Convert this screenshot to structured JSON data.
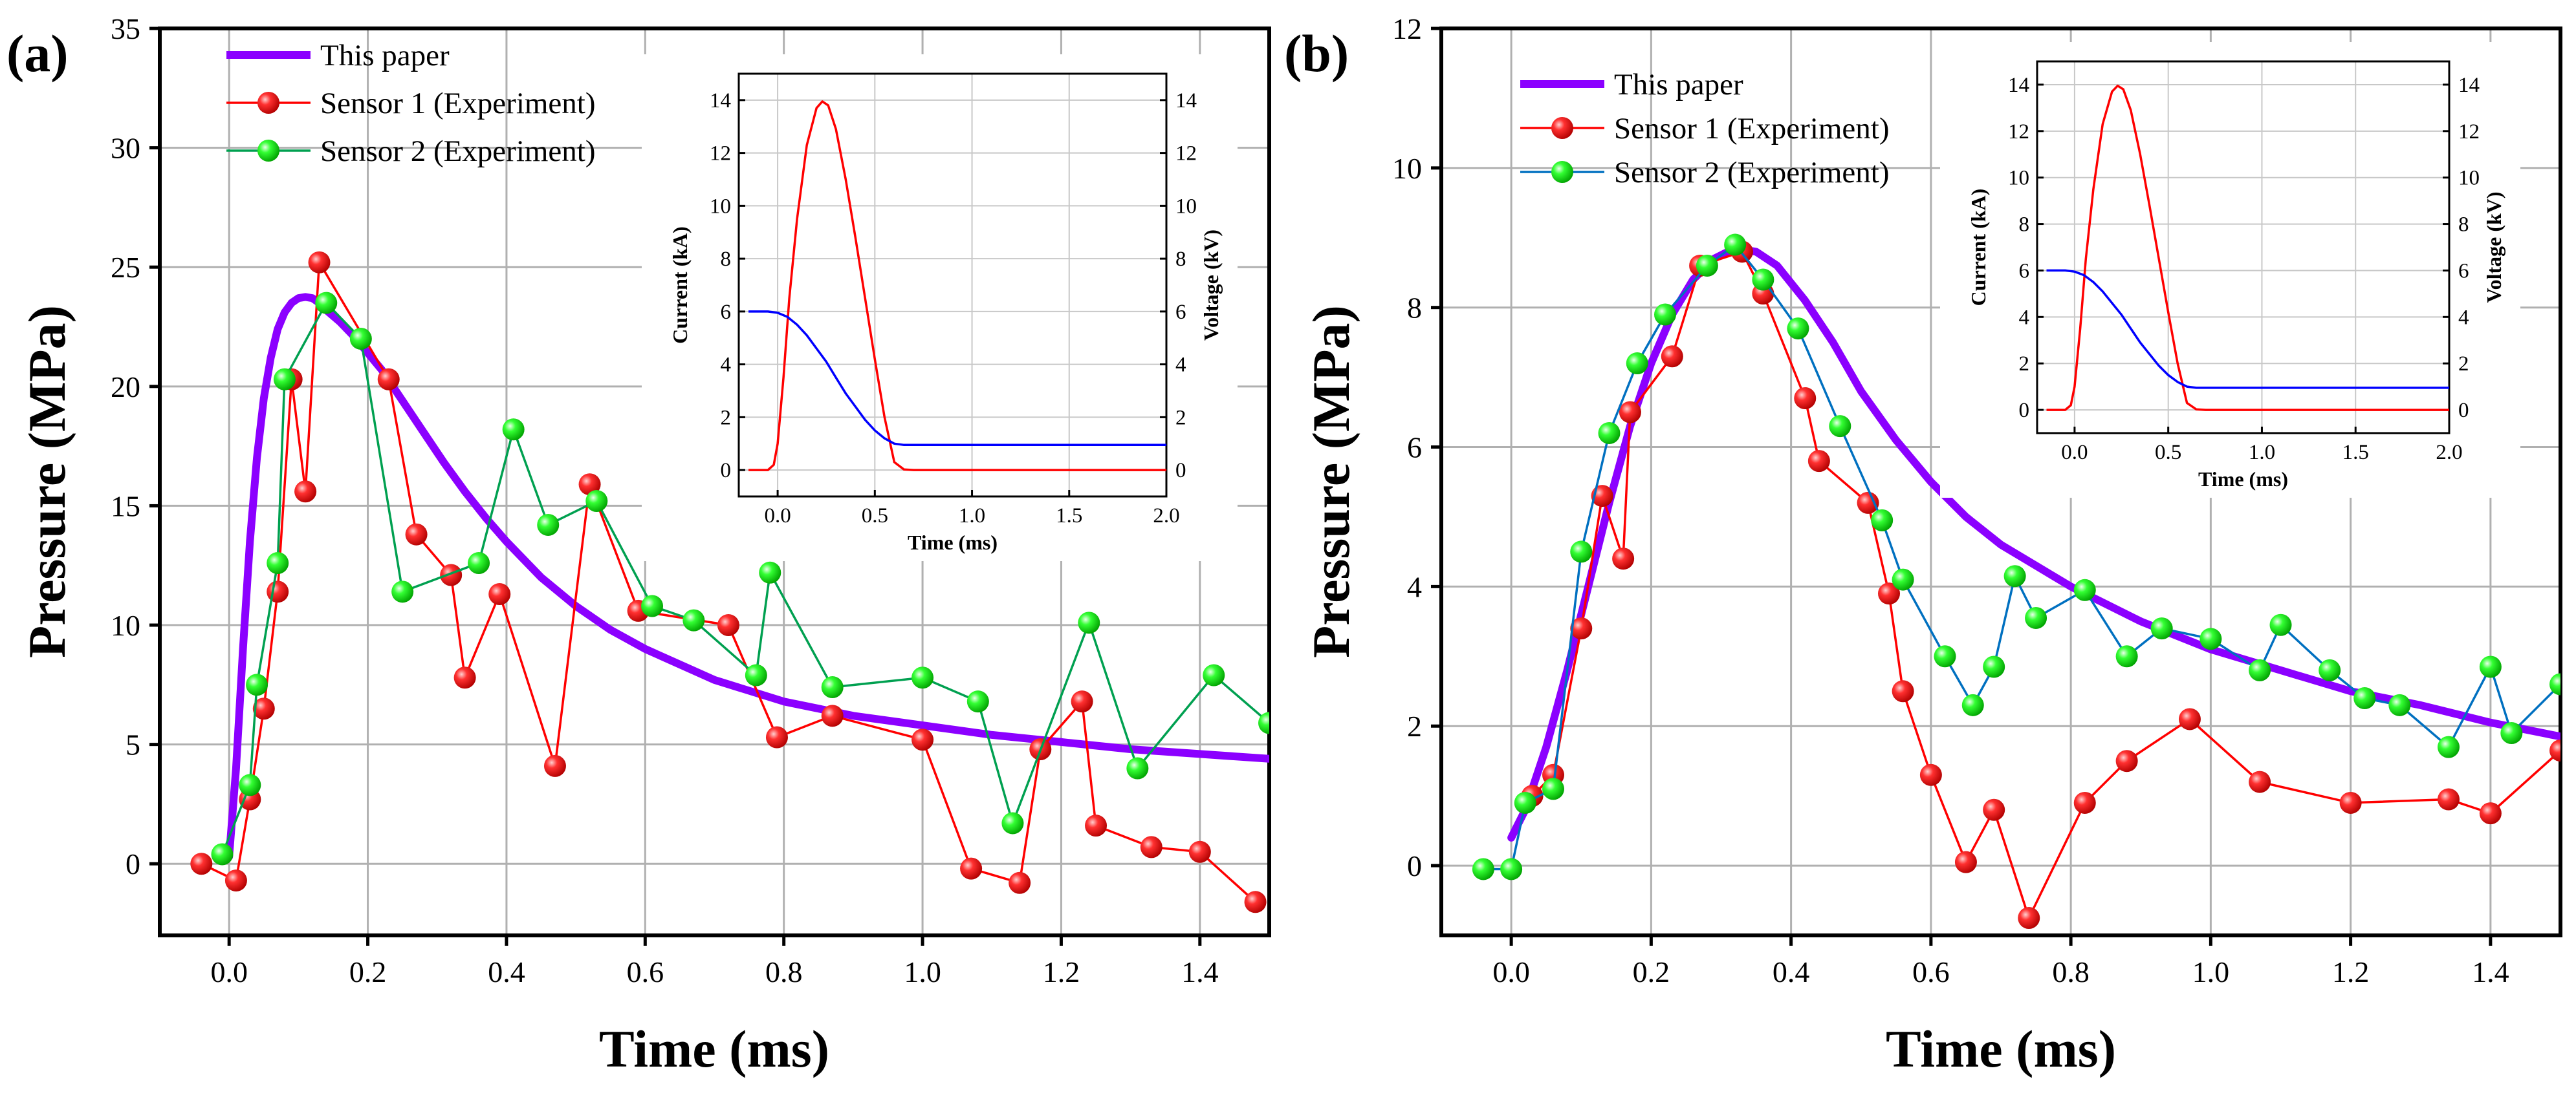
{
  "chart_data": [
    {
      "type": "line",
      "panel_label": "(a)",
      "xlabel": "Time (ms)",
      "ylabel": "Pressure (MPa)",
      "xlim": [
        -0.1,
        1.5
      ],
      "ylim": [
        -3,
        35
      ],
      "xticks": [
        "0.0",
        "0.2",
        "0.4",
        "0.6",
        "0.8",
        "1.0",
        "1.2",
        "1.4"
      ],
      "yticks": [
        "0",
        "5",
        "10",
        "15",
        "20",
        "25",
        "30",
        "35"
      ],
      "grid": true,
      "legend_position": "top-left",
      "series": [
        {
          "name": "This paper",
          "color": "#8b00ff",
          "marker": "none",
          "x": [
            0.0,
            0.01,
            0.02,
            0.03,
            0.04,
            0.05,
            0.06,
            0.07,
            0.08,
            0.09,
            0.1,
            0.11,
            0.12,
            0.13,
            0.14,
            0.16,
            0.18,
            0.2,
            0.22,
            0.25,
            0.28,
            0.31,
            0.34,
            0.37,
            0.4,
            0.45,
            0.5,
            0.55,
            0.6,
            0.7,
            0.8,
            0.9,
            1.0,
            1.1,
            1.2,
            1.3,
            1.4,
            1.5
          ],
          "y": [
            0.3,
            4,
            9,
            13.5,
            17,
            19.5,
            21.2,
            22.4,
            23.1,
            23.5,
            23.7,
            23.75,
            23.7,
            23.5,
            23.2,
            22.7,
            22.1,
            21.4,
            20.7,
            19.4,
            18.1,
            16.8,
            15.6,
            14.5,
            13.5,
            12.0,
            10.8,
            9.8,
            9.0,
            7.7,
            6.8,
            6.2,
            5.8,
            5.4,
            5.1,
            4.8,
            4.6,
            4.4
          ]
        },
        {
          "name": "Sensor 1 (Experiment)",
          "color": "#ff0000",
          "marker": "circle-red",
          "x": [
            -0.04,
            0.01,
            0.03,
            0.05,
            0.07,
            0.09,
            0.11,
            0.13,
            0.23,
            0.27,
            0.32,
            0.34,
            0.39,
            0.47,
            0.52,
            0.59,
            0.72,
            0.79,
            0.87,
            1.0,
            1.07,
            1.14,
            1.17,
            1.23,
            1.25,
            1.33,
            1.4,
            1.48
          ],
          "y": [
            0.0,
            -0.7,
            2.7,
            6.5,
            11.4,
            20.3,
            15.6,
            25.2,
            20.3,
            13.8,
            12.1,
            7.8,
            11.3,
            4.1,
            15.9,
            10.6,
            10.0,
            5.3,
            6.2,
            5.2,
            -0.2,
            -0.8,
            4.8,
            6.8,
            1.6,
            0.7,
            0.5,
            -1.6
          ]
        },
        {
          "name": "Sensor 2 (Experiment)",
          "color": "#00a050",
          "marker": "circle-green",
          "x": [
            -0.01,
            0.03,
            0.04,
            0.07,
            0.08,
            0.14,
            0.19,
            0.25,
            0.36,
            0.41,
            0.46,
            0.53,
            0.61,
            0.67,
            0.76,
            0.78,
            0.87,
            1.0,
            1.08,
            1.13,
            1.24,
            1.31,
            1.42,
            1.5
          ],
          "y": [
            0.4,
            3.3,
            7.5,
            12.6,
            20.3,
            23.5,
            22.0,
            11.4,
            12.6,
            18.2,
            14.2,
            15.2,
            10.8,
            10.2,
            7.9,
            12.2,
            7.4,
            7.8,
            6.8,
            1.7,
            10.1,
            4.0,
            7.9,
            5.9
          ]
        }
      ],
      "inset": {
        "xlabel": "Time (ms)",
        "ylabel_left": "Current (kA)",
        "ylabel_right": "Voltage (kV)",
        "xlim": [
          -0.2,
          2.0
        ],
        "ylim": [
          -1,
          15
        ],
        "xticks": [
          "0.0",
          "0.5",
          "1.0",
          "1.5",
          "2.0"
        ],
        "yticks_left": [
          "0",
          "2",
          "4",
          "6",
          "8",
          "10",
          "12",
          "14"
        ],
        "yticks_right": [
          "0",
          "2",
          "4",
          "6",
          "8",
          "10",
          "12",
          "14"
        ],
        "series": [
          {
            "name": "Current",
            "color": "#ff0000",
            "x": [
              -0.15,
              -0.05,
              -0.02,
              0.0,
              0.03,
              0.06,
              0.1,
              0.15,
              0.2,
              0.23,
              0.26,
              0.3,
              0.35,
              0.4,
              0.45,
              0.5,
              0.55,
              0.6,
              0.65,
              0.7,
              1.0,
              1.5,
              2.0
            ],
            "y": [
              0,
              0,
              0.2,
              1.0,
              3.5,
              6.5,
              9.5,
              12.3,
              13.7,
              13.95,
              13.8,
              12.9,
              11.0,
              8.8,
              6.5,
              4.2,
              2.0,
              0.3,
              0.02,
              0,
              0,
              0,
              0
            ]
          },
          {
            "name": "Voltage",
            "color": "#0000ff",
            "x": [
              -0.15,
              -0.05,
              0.0,
              0.05,
              0.1,
              0.15,
              0.2,
              0.25,
              0.3,
              0.35,
              0.4,
              0.45,
              0.5,
              0.55,
              0.6,
              0.65,
              0.7,
              1.0,
              1.5,
              2.0
            ],
            "y": [
              6,
              6,
              5.95,
              5.8,
              5.5,
              5.1,
              4.6,
              4.1,
              3.5,
              2.9,
              2.4,
              1.9,
              1.5,
              1.2,
              1.0,
              0.95,
              0.95,
              0.95,
              0.95,
              0.95
            ]
          }
        ]
      }
    },
    {
      "type": "line",
      "panel_label": "(b)",
      "xlabel": "Time (ms)",
      "ylabel": "Pressure (MPa)",
      "xlim": [
        -0.1,
        1.5
      ],
      "ylim": [
        -1,
        12
      ],
      "xticks": [
        "0.0",
        "0.2",
        "0.4",
        "0.6",
        "0.8",
        "1.0",
        "1.2",
        "1.4"
      ],
      "yticks": [
        "0",
        "2",
        "4",
        "6",
        "8",
        "10",
        "12"
      ],
      "grid": true,
      "legend_position": "top-left",
      "series": [
        {
          "name": "This paper",
          "color": "#8b00ff",
          "marker": "none",
          "x": [
            0.0,
            0.02,
            0.05,
            0.08,
            0.11,
            0.14,
            0.17,
            0.2,
            0.23,
            0.26,
            0.29,
            0.32,
            0.35,
            0.38,
            0.42,
            0.46,
            0.5,
            0.55,
            0.6,
            0.65,
            0.7,
            0.75,
            0.8,
            0.9,
            1.0,
            1.1,
            1.2,
            1.3,
            1.4,
            1.5
          ],
          "y": [
            0.4,
            0.8,
            1.7,
            2.8,
            4.0,
            5.2,
            6.3,
            7.2,
            7.9,
            8.4,
            8.7,
            8.85,
            8.8,
            8.6,
            8.1,
            7.5,
            6.8,
            6.1,
            5.5,
            5.0,
            4.6,
            4.3,
            4.0,
            3.5,
            3.1,
            2.8,
            2.5,
            2.3,
            2.05,
            1.85
          ]
        },
        {
          "name": "Sensor 1 (Experiment)",
          "color": "#ff0000",
          "marker": "circle-red",
          "x": [
            0.03,
            0.06,
            0.1,
            0.13,
            0.16,
            0.17,
            0.23,
            0.27,
            0.33,
            0.36,
            0.42,
            0.44,
            0.51,
            0.54,
            0.56,
            0.6,
            0.65,
            0.69,
            0.74,
            0.82,
            0.88,
            0.97,
            1.07,
            1.2,
            1.34,
            1.4,
            1.5
          ],
          "y": [
            1.0,
            1.3,
            3.4,
            5.3,
            4.4,
            6.5,
            7.3,
            8.6,
            8.8,
            8.2,
            6.7,
            5.8,
            5.2,
            3.9,
            2.5,
            1.3,
            0.05,
            0.8,
            -0.75,
            0.9,
            1.5,
            2.1,
            1.2,
            0.9,
            0.95,
            0.75,
            1.65
          ]
        },
        {
          "name": "Sensor 2 (Experiment)",
          "color": "#0070c0",
          "marker": "circle-green",
          "x": [
            -0.04,
            0.0,
            0.02,
            0.06,
            0.1,
            0.14,
            0.18,
            0.22,
            0.28,
            0.32,
            0.36,
            0.41,
            0.47,
            0.53,
            0.56,
            0.62,
            0.66,
            0.69,
            0.72,
            0.75,
            0.82,
            0.88,
            0.93,
            1.0,
            1.07,
            1.1,
            1.17,
            1.22,
            1.27,
            1.34,
            1.4,
            1.43,
            1.5
          ],
          "y": [
            -0.05,
            -0.05,
            0.9,
            1.1,
            4.5,
            6.2,
            7.2,
            7.9,
            8.6,
            8.9,
            8.4,
            7.7,
            6.3,
            4.95,
            4.1,
            3.0,
            2.3,
            2.85,
            4.15,
            3.55,
            3.95,
            3.0,
            3.4,
            3.25,
            2.8,
            3.45,
            2.8,
            2.4,
            2.3,
            1.7,
            2.85,
            1.9,
            2.6
          ]
        }
      ],
      "inset": {
        "xlabel": "Time (ms)",
        "ylabel_left": "Current (kA)",
        "ylabel_right": "Voltage (kV)",
        "xlim": [
          -0.2,
          2.0
        ],
        "ylim": [
          -1,
          15
        ],
        "xticks": [
          "0.0",
          "0.5",
          "1.0",
          "1.5",
          "2.0"
        ],
        "yticks_left": [
          "0",
          "2",
          "4",
          "6",
          "8",
          "10",
          "12",
          "14"
        ],
        "yticks_right": [
          "0",
          "2",
          "4",
          "6",
          "8",
          "10",
          "12",
          "14"
        ],
        "series": [
          {
            "name": "Current",
            "color": "#ff0000",
            "x": [
              -0.15,
              -0.05,
              -0.02,
              0.0,
              0.03,
              0.06,
              0.1,
              0.15,
              0.2,
              0.23,
              0.26,
              0.3,
              0.35,
              0.4,
              0.45,
              0.5,
              0.55,
              0.6,
              0.65,
              0.7,
              1.0,
              1.5,
              2.0
            ],
            "y": [
              0,
              0,
              0.2,
              1.0,
              3.5,
              6.5,
              9.5,
              12.3,
              13.7,
              13.95,
              13.8,
              12.9,
              11.0,
              8.8,
              6.5,
              4.2,
              2.0,
              0.3,
              0.02,
              0,
              0,
              0,
              0
            ]
          },
          {
            "name": "Voltage",
            "color": "#0000ff",
            "x": [
              -0.15,
              -0.05,
              0.0,
              0.05,
              0.1,
              0.15,
              0.2,
              0.25,
              0.3,
              0.35,
              0.4,
              0.45,
              0.5,
              0.55,
              0.6,
              0.65,
              0.7,
              1.0,
              1.5,
              2.0
            ],
            "y": [
              6,
              6,
              5.95,
              5.8,
              5.5,
              5.1,
              4.6,
              4.1,
              3.5,
              2.9,
              2.4,
              1.9,
              1.5,
              1.2,
              1.0,
              0.95,
              0.95,
              0.95,
              0.95,
              0.95
            ]
          }
        ]
      }
    }
  ]
}
